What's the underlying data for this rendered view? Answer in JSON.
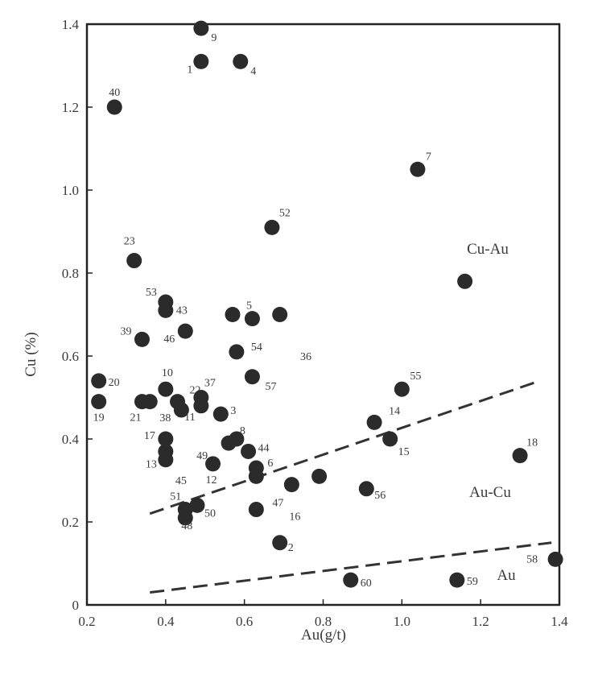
{
  "chart_data": {
    "type": "scatter",
    "xlabel": "Au(g/t)",
    "ylabel": "Cu (%)",
    "xlim": [
      0.2,
      1.4
    ],
    "ylim": [
      0,
      1.4
    ],
    "x_ticks": [
      "0.2",
      "0.4",
      "0.6",
      "0.8",
      "1.0",
      "1.2",
      "1.4"
    ],
    "y_ticks": [
      "0",
      "0.2",
      "0.4",
      "0.6",
      "0.8",
      "1.0",
      "1.2",
      "1.4"
    ],
    "grid": false,
    "marker_color": "#2b2b2b",
    "points": [
      {
        "label": "9",
        "x": 0.49,
        "y": 1.39
      },
      {
        "label": "1",
        "x": 0.49,
        "y": 1.31
      },
      {
        "label": "4",
        "x": 0.59,
        "y": 1.31
      },
      {
        "label": "40",
        "x": 0.27,
        "y": 1.2
      },
      {
        "label": "7",
        "x": 1.04,
        "y": 1.05
      },
      {
        "label": "52",
        "x": 0.67,
        "y": 0.91
      },
      {
        "label": "23",
        "x": 0.32,
        "y": 0.83
      },
      {
        "label": "",
        "x": 1.16,
        "y": 0.78
      },
      {
        "label": "53",
        "x": 0.4,
        "y": 0.73
      },
      {
        "label": "43",
        "x": 0.4,
        "y": 0.71
      },
      {
        "label": "5",
        "x": 0.62,
        "y": 0.69
      },
      {
        "label": "",
        "x": 0.57,
        "y": 0.7
      },
      {
        "label": "",
        "x": 0.69,
        "y": 0.7
      },
      {
        "label": "39",
        "x": 0.34,
        "y": 0.64
      },
      {
        "label": "46",
        "x": 0.45,
        "y": 0.66
      },
      {
        "label": "54",
        "x": 0.58,
        "y": 0.61
      },
      {
        "label": "36",
        "x": null,
        "y": null
      },
      {
        "label": "20",
        "x": 0.23,
        "y": 0.54
      },
      {
        "label": "57",
        "x": 0.62,
        "y": 0.55
      },
      {
        "label": "10",
        "x": 0.4,
        "y": 0.52
      },
      {
        "label": "55",
        "x": 1.0,
        "y": 0.52
      },
      {
        "label": "19",
        "x": 0.23,
        "y": 0.49
      },
      {
        "label": "21",
        "x": 0.34,
        "y": 0.49
      },
      {
        "label": "",
        "x": 0.36,
        "y": 0.49
      },
      {
        "label": "22",
        "x": 0.43,
        "y": 0.49
      },
      {
        "label": "38",
        "x": 0.44,
        "y": 0.47
      },
      {
        "label": "37",
        "x": 0.49,
        "y": 0.5
      },
      {
        "label": "11",
        "x": 0.49,
        "y": 0.48
      },
      {
        "label": "3",
        "x": 0.54,
        "y": 0.46
      },
      {
        "label": "14",
        "x": 0.93,
        "y": 0.44
      },
      {
        "label": "17",
        "x": 0.4,
        "y": 0.4
      },
      {
        "label": "8",
        "x": 0.58,
        "y": 0.4
      },
      {
        "label": "15",
        "x": 0.97,
        "y": 0.4
      },
      {
        "label": "49",
        "x": 0.56,
        "y": 0.39
      },
      {
        "label": "44",
        "x": 0.61,
        "y": 0.37
      },
      {
        "label": "13",
        "x": 0.4,
        "y": 0.37
      },
      {
        "label": "18",
        "x": 1.3,
        "y": 0.36
      },
      {
        "label": "45",
        "x": 0.4,
        "y": 0.35
      },
      {
        "label": "12",
        "x": 0.52,
        "y": 0.34
      },
      {
        "label": "6",
        "x": 0.63,
        "y": 0.33
      },
      {
        "label": "",
        "x": 0.63,
        "y": 0.31
      },
      {
        "label": "",
        "x": 0.79,
        "y": 0.31
      },
      {
        "label": "16",
        "x": 0.72,
        "y": 0.29
      },
      {
        "label": "56",
        "x": 0.91,
        "y": 0.28
      },
      {
        "label": "47",
        "x": 0.63,
        "y": 0.23
      },
      {
        "label": "51",
        "x": 0.45,
        "y": 0.23
      },
      {
        "label": "50",
        "x": 0.48,
        "y": 0.24
      },
      {
        "label": "48",
        "x": 0.45,
        "y": 0.21
      },
      {
        "label": "2",
        "x": 0.69,
        "y": 0.15
      },
      {
        "label": "58",
        "x": 1.39,
        "y": 0.11
      },
      {
        "label": "59",
        "x": 1.14,
        "y": 0.06
      },
      {
        "label": "60",
        "x": 0.87,
        "y": 0.06
      }
    ],
    "boundary_lines": [
      {
        "x": [
          0.36,
          1.35
        ],
        "y": [
          0.22,
          0.54
        ]
      },
      {
        "x": [
          0.36,
          1.38
        ],
        "y": [
          0.03,
          0.15
        ]
      }
    ],
    "region_labels": [
      "Cu-Au",
      "Au-Cu",
      "Au"
    ]
  }
}
